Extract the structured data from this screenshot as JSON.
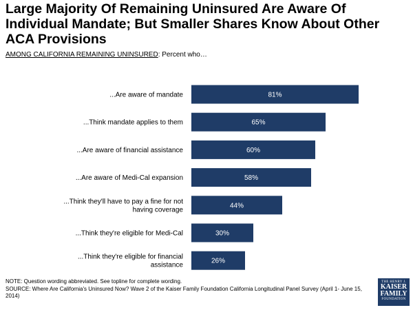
{
  "header": {
    "title": "Large Majority Of Remaining Uninsured Are Aware Of Individual Mandate; But Smaller Shares Know About Other ACA Provisions",
    "subtitle_underlined": "AMONG CALIFORNIA REMAINING UNINSURED",
    "subtitle_rest": ": Percent who…"
  },
  "chart_data": {
    "type": "bar",
    "orientation": "horizontal",
    "categories": [
      "...Are aware of mandate",
      "...Think mandate applies to them",
      "...Are aware of financial assistance",
      "...Are aware of Medi-Cal expansion",
      "...Think they'll have to pay a fine for not having coverage",
      "...Think they're eligible for Medi-Cal",
      "...Think they're eligible for financial assistance"
    ],
    "values": [
      81,
      65,
      60,
      58,
      44,
      30,
      26
    ],
    "data_labels": [
      "81%",
      "65%",
      "60%",
      "58%",
      "44%",
      "30%",
      "26%"
    ],
    "bar_color": "#1f3c67",
    "label_color": "#ffffff",
    "xlim": [
      0,
      100
    ],
    "grid": false,
    "legend": "none"
  },
  "notes": {
    "note": "NOTE: Question wording abbreviated. See topline for complete wording.",
    "source": "SOURCE: Where Are California's Uninsured Now? Wave 2 of the Kaiser Family Foundation California Longitudinal Panel Survey (April 1- June 15, 2014)"
  },
  "logo": {
    "line1": "THE HENRY J.",
    "line2": "KAISER",
    "line3": "FAMILY",
    "line4": "FOUNDATION"
  }
}
